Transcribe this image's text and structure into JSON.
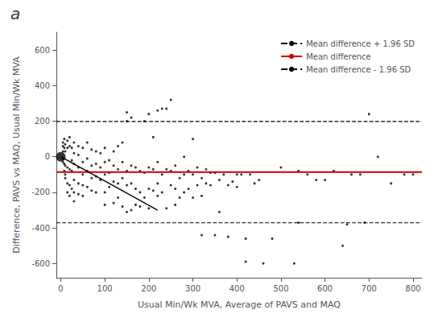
{
  "chart_data": {
    "type": "scatter",
    "title": "a",
    "xlabel": "Usual Min/Wk MVA, Average of PAVS and MAQ",
    "ylabel": "Difference, PAVS vs MAQ, Usual Min/Wk MVA",
    "xlim": [
      -10,
      820
    ],
    "ylim": [
      -680,
      700
    ],
    "xticks": [
      0,
      100,
      200,
      300,
      400,
      500,
      600,
      700,
      800
    ],
    "yticks": [
      -600,
      -400,
      -200,
      0,
      200,
      400,
      600
    ],
    "grid": false,
    "legend": "upper right",
    "series": [
      {
        "type": "scatter",
        "marker": "point",
        "color": "#000000",
        "x": [
          5,
          5,
          5,
          5,
          5,
          8,
          8,
          8,
          8,
          10,
          10,
          10,
          10,
          10,
          15,
          15,
          15,
          15,
          15,
          20,
          20,
          20,
          20,
          20,
          25,
          25,
          25,
          25,
          30,
          30,
          30,
          30,
          30,
          30,
          40,
          40,
          40,
          40,
          40,
          50,
          50,
          50,
          50,
          50,
          60,
          60,
          60,
          60,
          70,
          70,
          70,
          70,
          80,
          80,
          80,
          80,
          90,
          90,
          90,
          100,
          100,
          100,
          100,
          100,
          110,
          110,
          110,
          120,
          120,
          120,
          120,
          130,
          130,
          130,
          130,
          140,
          140,
          140,
          140,
          150,
          150,
          150,
          150,
          150,
          160,
          160,
          160,
          160,
          170,
          170,
          170,
          180,
          180,
          180,
          190,
          190,
          190,
          200,
          200,
          200,
          200,
          210,
          210,
          210,
          220,
          220,
          220,
          220,
          230,
          230,
          230,
          240,
          240,
          240,
          250,
          250,
          250,
          260,
          260,
          260,
          270,
          270,
          280,
          280,
          280,
          290,
          290,
          300,
          300,
          300,
          310,
          310,
          320,
          320,
          320,
          330,
          330,
          340,
          340,
          350,
          350,
          360,
          360,
          370,
          380,
          380,
          390,
          400,
          400,
          410,
          420,
          420,
          430,
          440,
          450,
          460,
          480,
          500,
          530,
          540,
          540,
          560,
          580,
          600,
          620,
          640,
          650,
          660,
          680,
          690,
          700,
          720,
          750,
          780,
          800
        ],
        "values": [
          60,
          80,
          30,
          -10,
          -30,
          50,
          100,
          -40,
          -80,
          70,
          30,
          -50,
          -100,
          -120,
          90,
          50,
          -60,
          -150,
          -200,
          110,
          60,
          -70,
          -160,
          -220,
          50,
          -20,
          -80,
          -180,
          80,
          20,
          -40,
          -130,
          -200,
          -250,
          60,
          10,
          -60,
          -150,
          -210,
          50,
          -30,
          -100,
          -160,
          -220,
          80,
          -10,
          -80,
          -170,
          40,
          -50,
          -120,
          -190,
          30,
          -40,
          -110,
          -200,
          20,
          -60,
          -130,
          50,
          -30,
          -100,
          -200,
          -270,
          -20,
          -90,
          -170,
          30,
          -50,
          -140,
          -260,
          60,
          -70,
          -150,
          -230,
          80,
          -30,
          -120,
          -280,
          250,
          200,
          -80,
          -160,
          -310,
          220,
          -50,
          -150,
          -300,
          -60,
          -180,
          -270,
          -80,
          -200,
          -280,
          200,
          -90,
          -230,
          240,
          -60,
          -180,
          -290,
          110,
          -70,
          -190,
          260,
          -30,
          -150,
          -220,
          270,
          -100,
          -200,
          270,
          -70,
          -290,
          320,
          -80,
          -160,
          -50,
          -180,
          -270,
          -120,
          -230,
          0,
          -100,
          -200,
          -80,
          -180,
          100,
          -100,
          -230,
          -60,
          -160,
          -120,
          -220,
          -440,
          -70,
          -150,
          -90,
          -160,
          -90,
          -440,
          -130,
          -310,
          -100,
          -160,
          -450,
          -140,
          -100,
          -170,
          -100,
          -460,
          -590,
          -100,
          -150,
          -130,
          -600,
          -460,
          -60,
          -600,
          -80,
          -370,
          -100,
          -130,
          -130,
          -80,
          -500,
          -380,
          -100,
          -100,
          -370,
          240,
          0,
          -150,
          -100,
          -100
        ]
      },
      {
        "type": "scatter",
        "marker": "circle",
        "color": "#000000",
        "x": [
          0
        ],
        "values": [
          0
        ]
      },
      {
        "type": "hline",
        "name": "Mean difference + 1.96 SD",
        "color": "#000000",
        "line_style": "dashed",
        "y": 198.7
      },
      {
        "type": "hline",
        "name": "Mean difference",
        "color": "#cc0000",
        "line_style": "solid",
        "y": -86.3
      },
      {
        "type": "hline",
        "name": "Mean difference - 1.96 SD",
        "color": "#000000",
        "line_style": "dashed",
        "y": -371.3
      },
      {
        "type": "line",
        "color": "#000000",
        "line_style": "solid",
        "x": [
          0,
          220
        ],
        "values": [
          0,
          -300
        ]
      }
    ]
  }
}
